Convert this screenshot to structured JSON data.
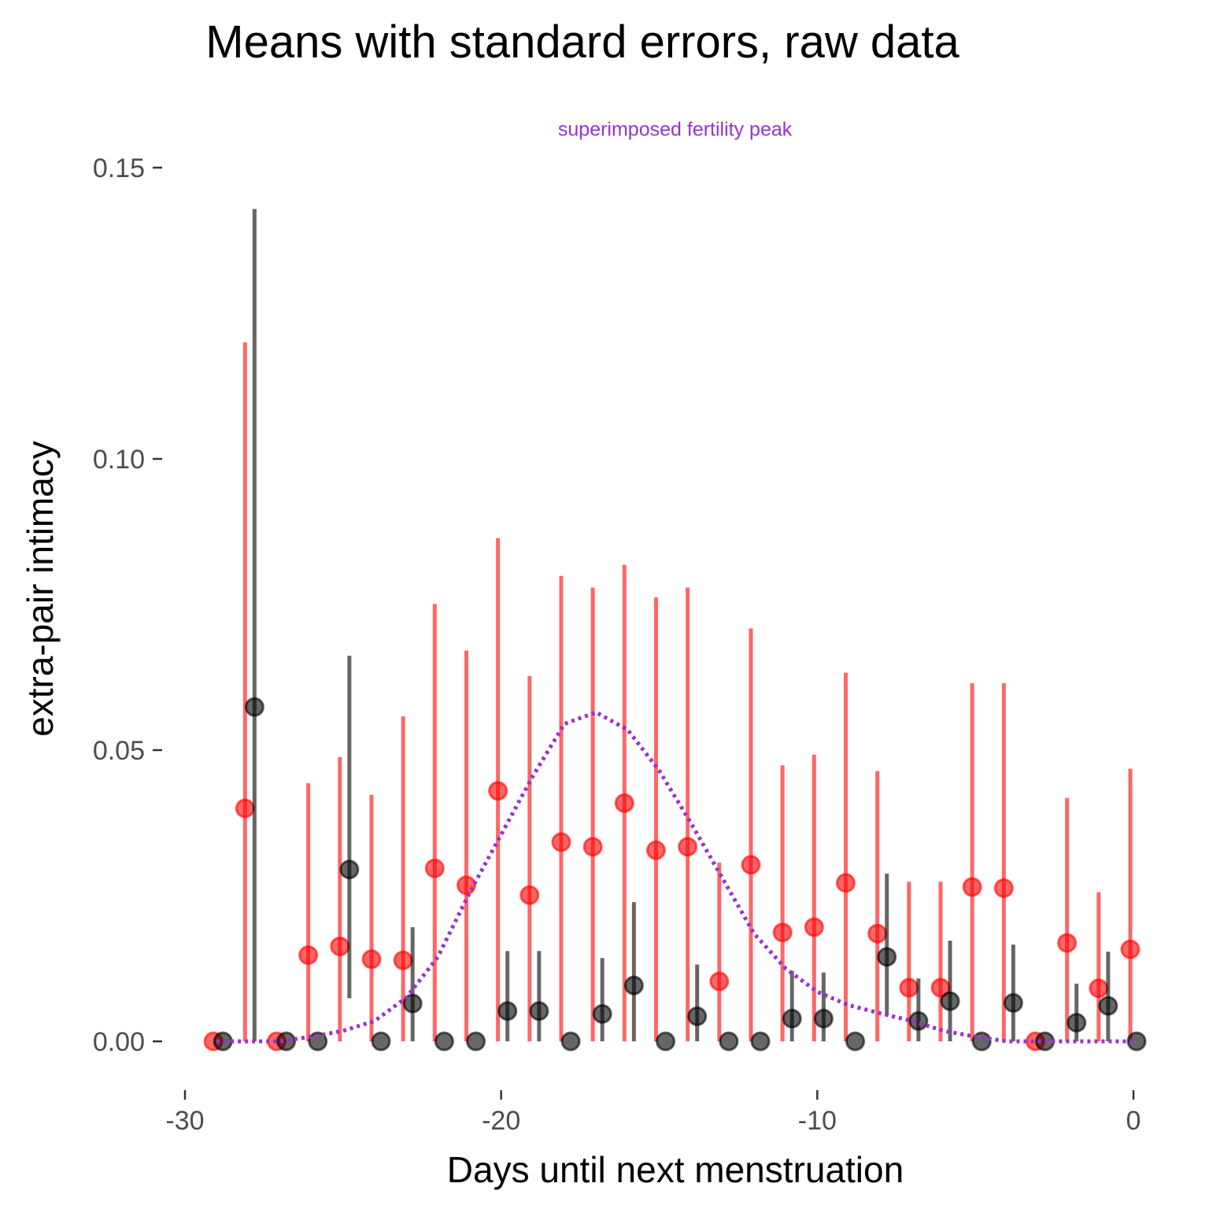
{
  "chart_data": {
    "type": "scatter",
    "title": "Means with standard errors, raw data",
    "xlabel": "Days until next menstruation",
    "ylabel": "extra-pair intimacy",
    "xlim": [
      -30,
      0
    ],
    "ylim": [
      0,
      0.15
    ],
    "x_ticks": [
      -30,
      -20,
      -10,
      0
    ],
    "x_tick_labels": [
      "-30",
      "-20",
      "-10",
      "0"
    ],
    "y_ticks": [
      0.0,
      0.05,
      0.1,
      0.15
    ],
    "y_tick_labels": [
      "0.00",
      "0.05",
      "0.10",
      "0.15"
    ],
    "grid": false,
    "annotation": {
      "text": "superimposed fertility peak",
      "x": -14.5,
      "y": 0.1555,
      "color": "#9932CC"
    },
    "series": [
      {
        "color": "#FF0000",
        "points": [
          {
            "x": -29.1,
            "y": 0.0,
            "lo": 0.0,
            "hi": 0.0
          },
          {
            "x": -28.1,
            "y": 0.04,
            "lo": 0.0,
            "hi": 0.12
          },
          {
            "x": -27.1,
            "y": 0.0,
            "lo": 0.0,
            "hi": 0.0
          },
          {
            "x": -26.1,
            "y": 0.0148,
            "lo": 0.0,
            "hi": 0.0443
          },
          {
            "x": -25.1,
            "y": 0.0163,
            "lo": 0.0,
            "hi": 0.0488
          },
          {
            "x": -24.1,
            "y": 0.0141,
            "lo": 0.0,
            "hi": 0.0423
          },
          {
            "x": -23.1,
            "y": 0.0139,
            "lo": 0.0,
            "hi": 0.0558
          },
          {
            "x": -22.1,
            "y": 0.0297,
            "lo": 0.0,
            "hi": 0.0751
          },
          {
            "x": -21.1,
            "y": 0.0268,
            "lo": 0.0,
            "hi": 0.0671
          },
          {
            "x": -20.1,
            "y": 0.043,
            "lo": 0.0,
            "hi": 0.0864
          },
          {
            "x": -19.1,
            "y": 0.0251,
            "lo": 0.0,
            "hi": 0.0627
          },
          {
            "x": -18.1,
            "y": 0.0342,
            "lo": 0.0,
            "hi": 0.0799
          },
          {
            "x": -17.1,
            "y": 0.0334,
            "lo": 0.0,
            "hi": 0.0779
          },
          {
            "x": -16.1,
            "y": 0.0409,
            "lo": 0.0,
            "hi": 0.0818
          },
          {
            "x": -15.1,
            "y": 0.0328,
            "lo": 0.0,
            "hi": 0.0762
          },
          {
            "x": -14.1,
            "y": 0.0334,
            "lo": 0.0,
            "hi": 0.0779
          },
          {
            "x": -13.1,
            "y": 0.0103,
            "lo": 0.0,
            "hi": 0.0307
          },
          {
            "x": -12.1,
            "y": 0.0303,
            "lo": 0.0,
            "hi": 0.0709
          },
          {
            "x": -11.1,
            "y": 0.0187,
            "lo": 0.0,
            "hi": 0.0474
          },
          {
            "x": -10.1,
            "y": 0.0196,
            "lo": 0.0,
            "hi": 0.0492
          },
          {
            "x": -9.1,
            "y": 0.0272,
            "lo": 0.0,
            "hi": 0.0633
          },
          {
            "x": -8.1,
            "y": 0.0185,
            "lo": 0.0,
            "hi": 0.0464
          },
          {
            "x": -7.1,
            "y": 0.0092,
            "lo": 0.0,
            "hi": 0.0274
          },
          {
            "x": -6.1,
            "y": 0.0092,
            "lo": 0.0,
            "hi": 0.0274
          },
          {
            "x": -5.1,
            "y": 0.0265,
            "lo": 0.0,
            "hi": 0.0615
          },
          {
            "x": -4.1,
            "y": 0.0263,
            "lo": 0.0,
            "hi": 0.0615
          },
          {
            "x": -3.1,
            "y": 0.0,
            "lo": 0.0,
            "hi": 0.0
          },
          {
            "x": -2.1,
            "y": 0.0169,
            "lo": 0.0,
            "hi": 0.0418
          },
          {
            "x": -1.1,
            "y": 0.0091,
            "lo": 0.0,
            "hi": 0.0256
          },
          {
            "x": -0.1,
            "y": 0.0158,
            "lo": 0.0,
            "hi": 0.0468
          }
        ]
      },
      {
        "color": "#000000",
        "points": [
          {
            "x": -28.8,
            "y": 0.0,
            "lo": 0.0,
            "hi": 0.0
          },
          {
            "x": -27.8,
            "y": 0.0574,
            "lo": 0.0,
            "hi": 0.1429
          },
          {
            "x": -26.8,
            "y": 0.0,
            "lo": 0.0,
            "hi": 0.0
          },
          {
            "x": -25.8,
            "y": 0.0,
            "lo": 0.0,
            "hi": 0.0
          },
          {
            "x": -24.8,
            "y": 0.0295,
            "lo": 0.0074,
            "hi": 0.0662
          },
          {
            "x": -23.8,
            "y": 0.0,
            "lo": 0.0,
            "hi": 0.0
          },
          {
            "x": -22.8,
            "y": 0.0065,
            "lo": 0.0,
            "hi": 0.0196
          },
          {
            "x": -21.8,
            "y": 0.0,
            "lo": 0.0,
            "hi": 0.0
          },
          {
            "x": -20.8,
            "y": 0.0,
            "lo": 0.0,
            "hi": 0.0
          },
          {
            "x": -19.8,
            "y": 0.0052,
            "lo": 0.0,
            "hi": 0.0155
          },
          {
            "x": -18.8,
            "y": 0.0052,
            "lo": 0.0,
            "hi": 0.0155
          },
          {
            "x": -17.8,
            "y": 0.0,
            "lo": 0.0,
            "hi": 0.0
          },
          {
            "x": -16.8,
            "y": 0.0047,
            "lo": 0.0,
            "hi": 0.0143
          },
          {
            "x": -15.8,
            "y": 0.0096,
            "lo": 0.0,
            "hi": 0.0239
          },
          {
            "x": -14.8,
            "y": 0.0,
            "lo": 0.0,
            "hi": 0.0
          },
          {
            "x": -13.8,
            "y": 0.0043,
            "lo": 0.0,
            "hi": 0.0132
          },
          {
            "x": -12.8,
            "y": 0.0,
            "lo": 0.0,
            "hi": 0.0
          },
          {
            "x": -11.8,
            "y": 0.0,
            "lo": 0.0,
            "hi": 0.0
          },
          {
            "x": -10.8,
            "y": 0.0039,
            "lo": 0.0,
            "hi": 0.0121
          },
          {
            "x": -9.8,
            "y": 0.0039,
            "lo": 0.0,
            "hi": 0.0118
          },
          {
            "x": -8.8,
            "y": 0.0,
            "lo": 0.0,
            "hi": 0.0
          },
          {
            "x": -7.8,
            "y": 0.0145,
            "lo": 0.0045,
            "hi": 0.0288
          },
          {
            "x": -6.8,
            "y": 0.0035,
            "lo": 0.0,
            "hi": 0.0108
          },
          {
            "x": -5.8,
            "y": 0.0069,
            "lo": 0.0,
            "hi": 0.0173
          },
          {
            "x": -4.8,
            "y": 0.0,
            "lo": 0.0,
            "hi": 0.0
          },
          {
            "x": -3.8,
            "y": 0.0066,
            "lo": 0.0,
            "hi": 0.0166
          },
          {
            "x": -2.8,
            "y": 0.0,
            "lo": 0.0,
            "hi": 0.0
          },
          {
            "x": -1.8,
            "y": 0.0032,
            "lo": 0.0,
            "hi": 0.0099
          },
          {
            "x": -0.8,
            "y": 0.0061,
            "lo": 0.0,
            "hi": 0.0154
          },
          {
            "x": 0.1,
            "y": 0.0,
            "lo": 0.0,
            "hi": 0.0
          }
        ]
      }
    ],
    "fertility_curve": {
      "color": "#9932CC",
      "style": "dotted",
      "x": [
        -29,
        -28,
        -27,
        -26,
        -25,
        -24,
        -23,
        -22,
        -21,
        -20,
        -19,
        -18,
        -17,
        -16,
        -15,
        -14,
        -13,
        -12,
        -11,
        -10,
        -9,
        -8,
        -7,
        -6,
        -5,
        -4,
        -3,
        -2,
        -1,
        0
      ],
      "y": [
        0.0,
        0.0,
        0.0,
        0.0008,
        0.0018,
        0.0035,
        0.0075,
        0.0145,
        0.0255,
        0.0355,
        0.0455,
        0.0545,
        0.0565,
        0.0535,
        0.0465,
        0.0375,
        0.028,
        0.0185,
        0.0125,
        0.0085,
        0.0062,
        0.0048,
        0.0035,
        0.0018,
        0.0008,
        0.0,
        0.0,
        0.0,
        0.0,
        0.0
      ]
    }
  }
}
